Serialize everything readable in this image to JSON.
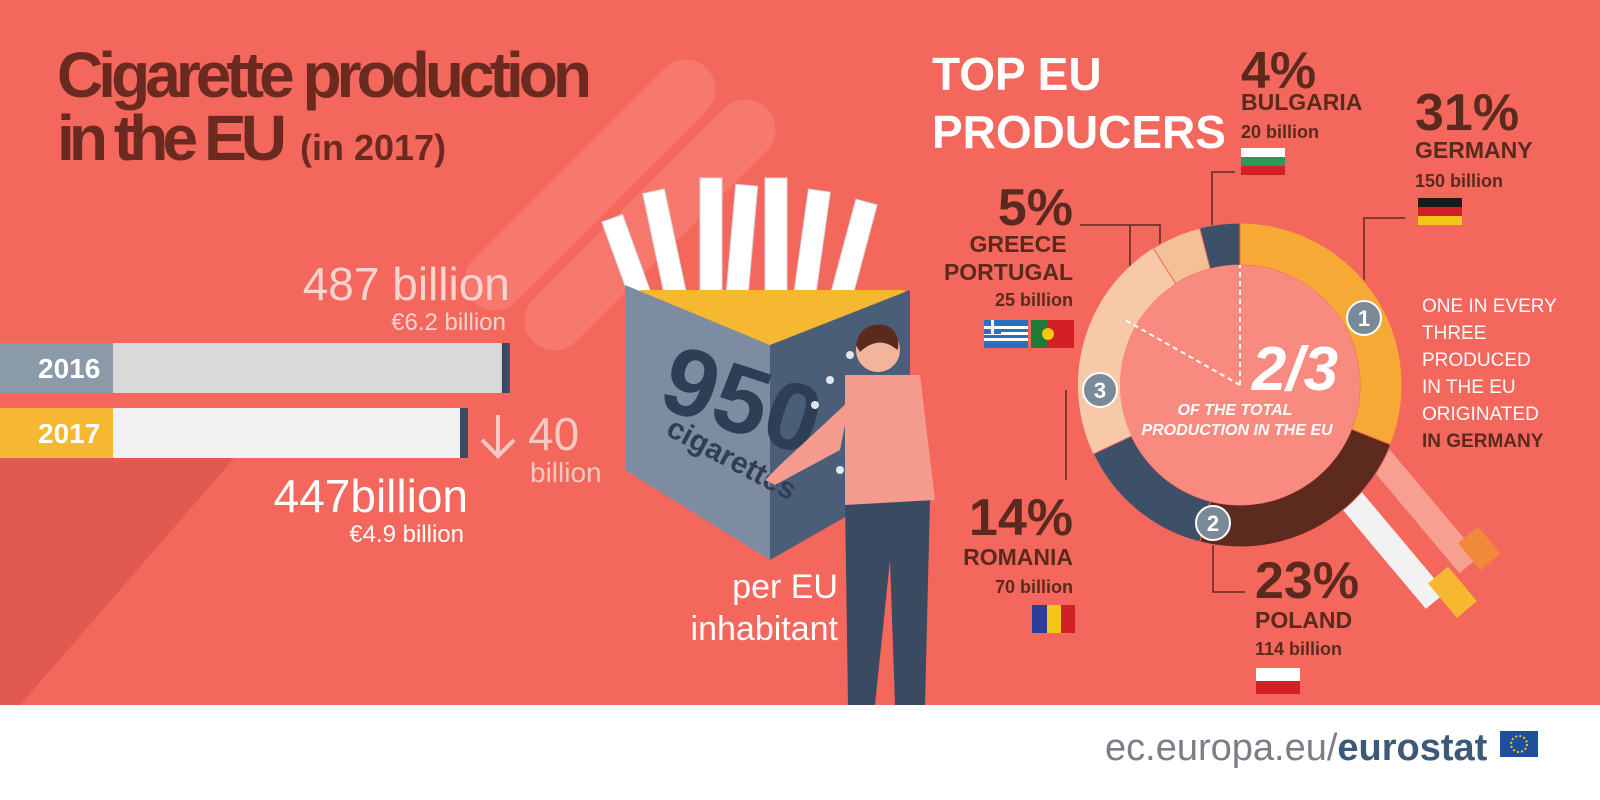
{
  "header": {
    "title_line1": "Cigarette production",
    "title_line2": "in the EU",
    "title_year": "(in 2017)"
  },
  "chart_data": [
    {
      "type": "bar",
      "categories": [
        "2016",
        "2017"
      ],
      "values": [
        487,
        447
      ],
      "value_labels": [
        "487 billion",
        "447billion"
      ],
      "secondary_labels": [
        "€6.2 billion",
        "€4.9 billion"
      ],
      "colors": [
        "#d9d9d9",
        "#f2f2f2"
      ],
      "change": 40,
      "change_unit": "billion"
    },
    {
      "type": "pie",
      "title_lines": [
        "TOP EU",
        "PRODUCERS"
      ],
      "categories": [
        "GERMANY",
        "POLAND",
        "ROMANIA",
        "GREECE PORTUGAL",
        "BULGARIA"
      ],
      "values": [
        31,
        23,
        14,
        5,
        4
      ],
      "value_labels": [
        "31%",
        "23%",
        "14%",
        "5%",
        "4%"
      ],
      "amounts": [
        "150 billion",
        "114 billion",
        "70 billion",
        "25 billion",
        "20 billion"
      ],
      "colors": [
        "#f6a935",
        "#5c2a1e",
        "#3e5068",
        "#f5bf98",
        "#3e5068"
      ],
      "center_value": "2/3",
      "center_text": "OF THE TOTAL PRODUCTION IN THE EU",
      "rank_badges": [
        "1",
        "2",
        "3"
      ],
      "note_lines": [
        "ONE IN EVERY",
        "THREE",
        "PRODUCED",
        "IN THE EU",
        "ORIGINATED",
        "IN GERMANY"
      ]
    }
  ],
  "illustration": {
    "number": 950,
    "unit": "cigarettes",
    "caption_line1": "per EU",
    "caption_line2": "inhabitant"
  },
  "footer": {
    "site": "ec.europa.eu/",
    "brand": "eurostat"
  }
}
